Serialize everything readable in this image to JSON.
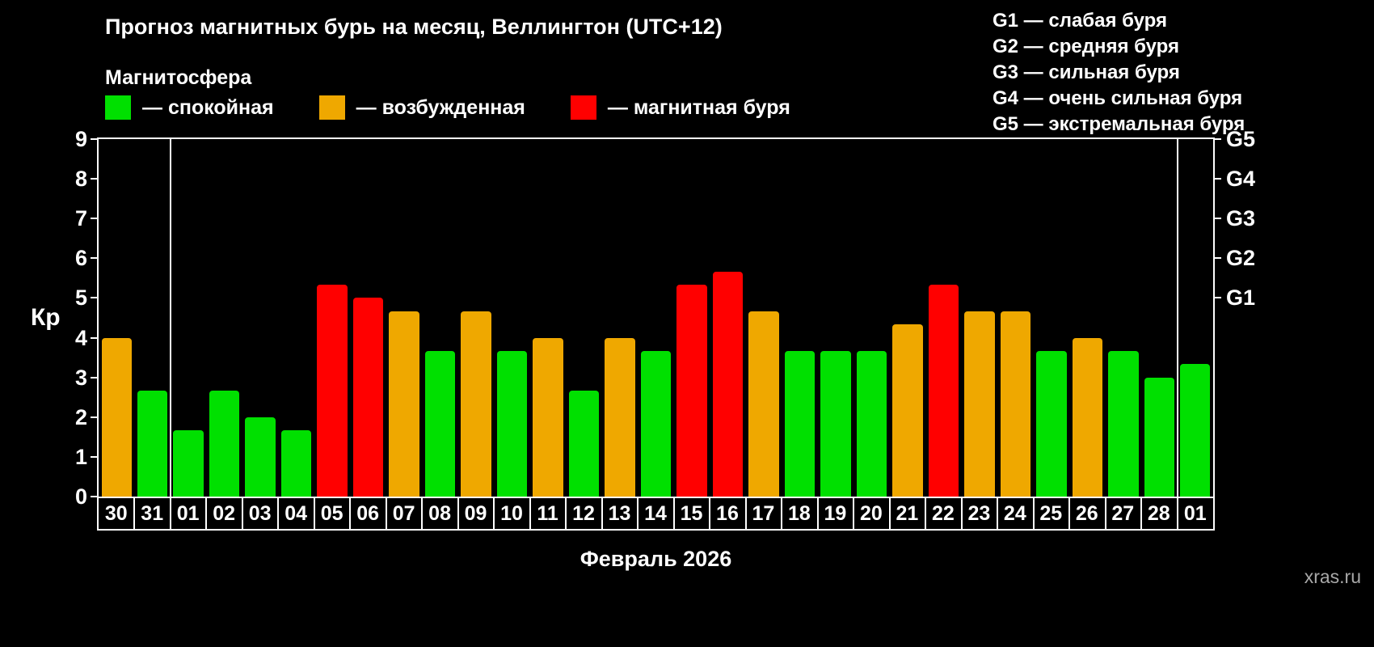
{
  "title": "Прогноз магнитных бурь на месяц, Веллингтон (UTC+12)",
  "subtitle": "Магнитосфера",
  "legend": [
    {
      "key": "quiet",
      "label": "— спокойная",
      "color": "#00e000"
    },
    {
      "key": "excited",
      "label": "— возбужденная",
      "color": "#efa800"
    },
    {
      "key": "storm",
      "label": "— магнитная буря",
      "color": "#ff0000"
    }
  ],
  "g_scale_legend": [
    "G1 — слабая буря",
    "G2 — средняя буря",
    "G3 — сильная буря",
    "G4 — очень сильная буря",
    "G5 — экстремальная буря"
  ],
  "watermark": "xras.ru",
  "chart_data": {
    "type": "bar",
    "title": "Прогноз магнитных бурь на месяц, Веллингтон (UTC+12)",
    "xlabel": "Февраль 2026",
    "ylabel": "Кр",
    "ylim": [
      0,
      9
    ],
    "yticks": [
      0,
      1,
      2,
      3,
      4,
      5,
      6,
      7,
      8,
      9
    ],
    "right_axis_ticks": [
      {
        "label": "G1",
        "value": 5
      },
      {
        "label": "G2",
        "value": 6
      },
      {
        "label": "G3",
        "value": 7
      },
      {
        "label": "G4",
        "value": 8
      },
      {
        "label": "G5",
        "value": 9
      }
    ],
    "categories": [
      "30",
      "31",
      "01",
      "02",
      "03",
      "04",
      "05",
      "06",
      "07",
      "08",
      "09",
      "10",
      "11",
      "12",
      "13",
      "14",
      "15",
      "16",
      "17",
      "18",
      "19",
      "20",
      "21",
      "22",
      "23",
      "24",
      "25",
      "26",
      "27",
      "28",
      "01"
    ],
    "values": [
      4.0,
      2.67,
      1.67,
      2.67,
      2.0,
      1.67,
      5.33,
      5.0,
      4.67,
      3.67,
      4.67,
      3.67,
      4.0,
      2.67,
      4.0,
      3.67,
      5.33,
      5.67,
      4.67,
      3.67,
      3.67,
      3.67,
      4.33,
      5.33,
      4.67,
      4.67,
      3.67,
      4.0,
      3.67,
      3.0,
      3.33
    ],
    "colors": {
      "quiet": "#00e000",
      "excited": "#efa800",
      "storm": "#ff0000"
    },
    "color_rules": {
      "excited_min": 4,
      "storm_min": 5
    },
    "month_separators_after_index": [
      1,
      29
    ],
    "grid": false,
    "legend_position": "top",
    "background": "#000000"
  }
}
